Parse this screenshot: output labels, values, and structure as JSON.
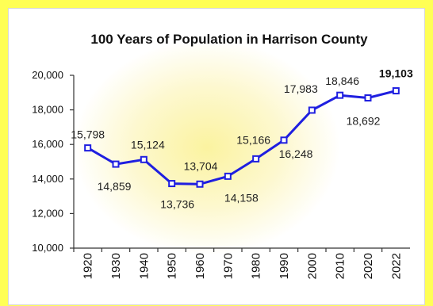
{
  "chart_data": {
    "type": "line",
    "title": "100 Years of Population in Harrison County",
    "xlabel": "",
    "ylabel": "",
    "categories": [
      "1920",
      "1930",
      "1940",
      "1950",
      "1960",
      "1970",
      "1980",
      "1990",
      "2000",
      "2010",
      "2020",
      "2022"
    ],
    "series": [
      {
        "values": [
          15798,
          14859,
          15124,
          13736,
          13704,
          14158,
          15166,
          16248,
          17983,
          18846,
          18692,
          19103
        ],
        "labels": [
          "15,798",
          "14,859",
          "15,124",
          "13,736",
          "13,704",
          "14,158",
          "15,166",
          "16,248",
          "17,983",
          "18,846",
          "18,692",
          "19,103"
        ]
      }
    ],
    "ylim": [
      10000,
      20000
    ],
    "yticks": [
      10000,
      12000,
      14000,
      16000,
      18000,
      20000
    ],
    "ytick_labels": [
      "10,000",
      "12,000",
      "14,000",
      "16,000",
      "18,000",
      "20,000"
    ],
    "grid": false,
    "legend": "none",
    "colors": {
      "line": "#1f1fe0",
      "background": "#ffff55"
    }
  }
}
